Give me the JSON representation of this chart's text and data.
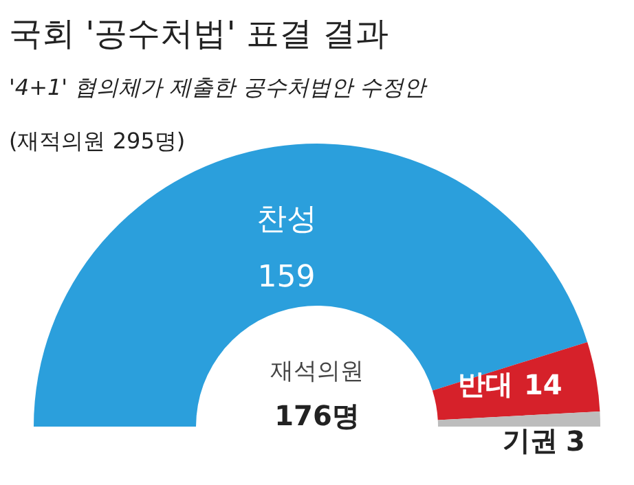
{
  "chart_data": {
    "type": "donut",
    "title": "국회 '공수처법' 표결 결과",
    "subtitle": "'4+1' 협의체가 제출한 공수처법안 수정안",
    "annotations": [
      "(재적의원 295명)",
      "재석의원 176명"
    ],
    "categories": [
      "찬성",
      "반대",
      "기권"
    ],
    "values": [
      159,
      14,
      3
    ],
    "colors": [
      "#2b9fdc",
      "#d6212a",
      "#bdbdbd"
    ],
    "data_labels": true
  }
}
